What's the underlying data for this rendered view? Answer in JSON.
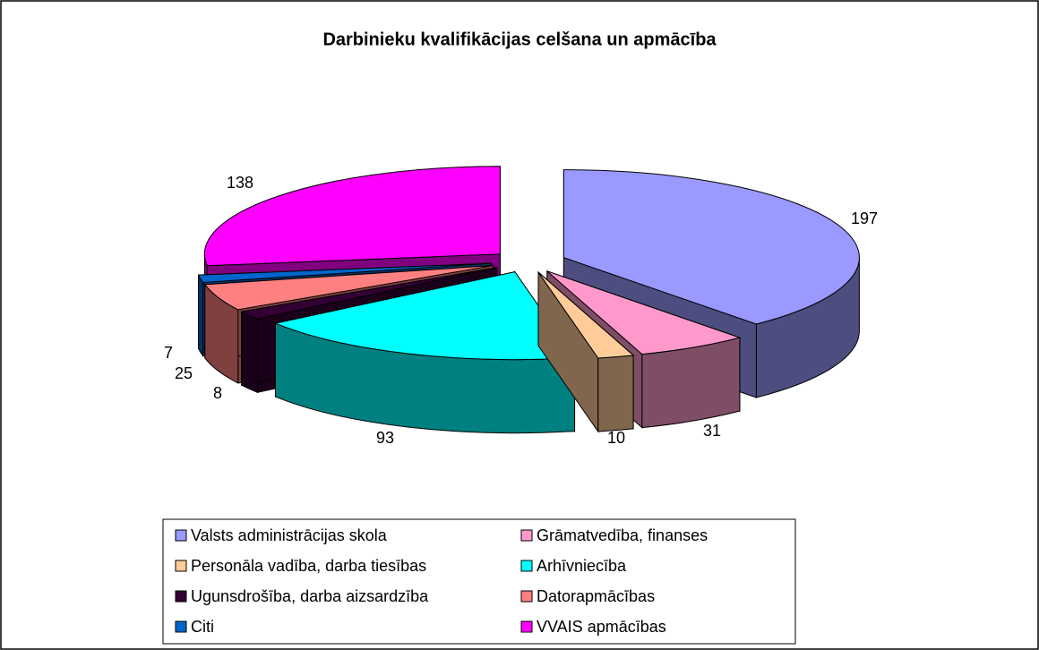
{
  "chart_data": {
    "type": "pie3d",
    "title": "Darbinieku kvalifikācijas celšana un apmācība",
    "categories": [
      "Valsts administrācijas skola",
      "Grāmatvedība, finanses",
      "Personāla vadība, darba tiesības",
      "Arhīvniecība",
      "Ugunsdrošība, darba aizsardzība",
      "Datorapmācības",
      "Citi",
      "VVAIS apmācības"
    ],
    "values": [
      197,
      31,
      10,
      93,
      8,
      25,
      7,
      138
    ],
    "colors": [
      "#9999ff",
      "#ff99cc",
      "#ffcc99",
      "#00ffff",
      "#330033",
      "#ff8080",
      "#0066cc",
      "#ff00ff"
    ],
    "legend": "bottom"
  }
}
